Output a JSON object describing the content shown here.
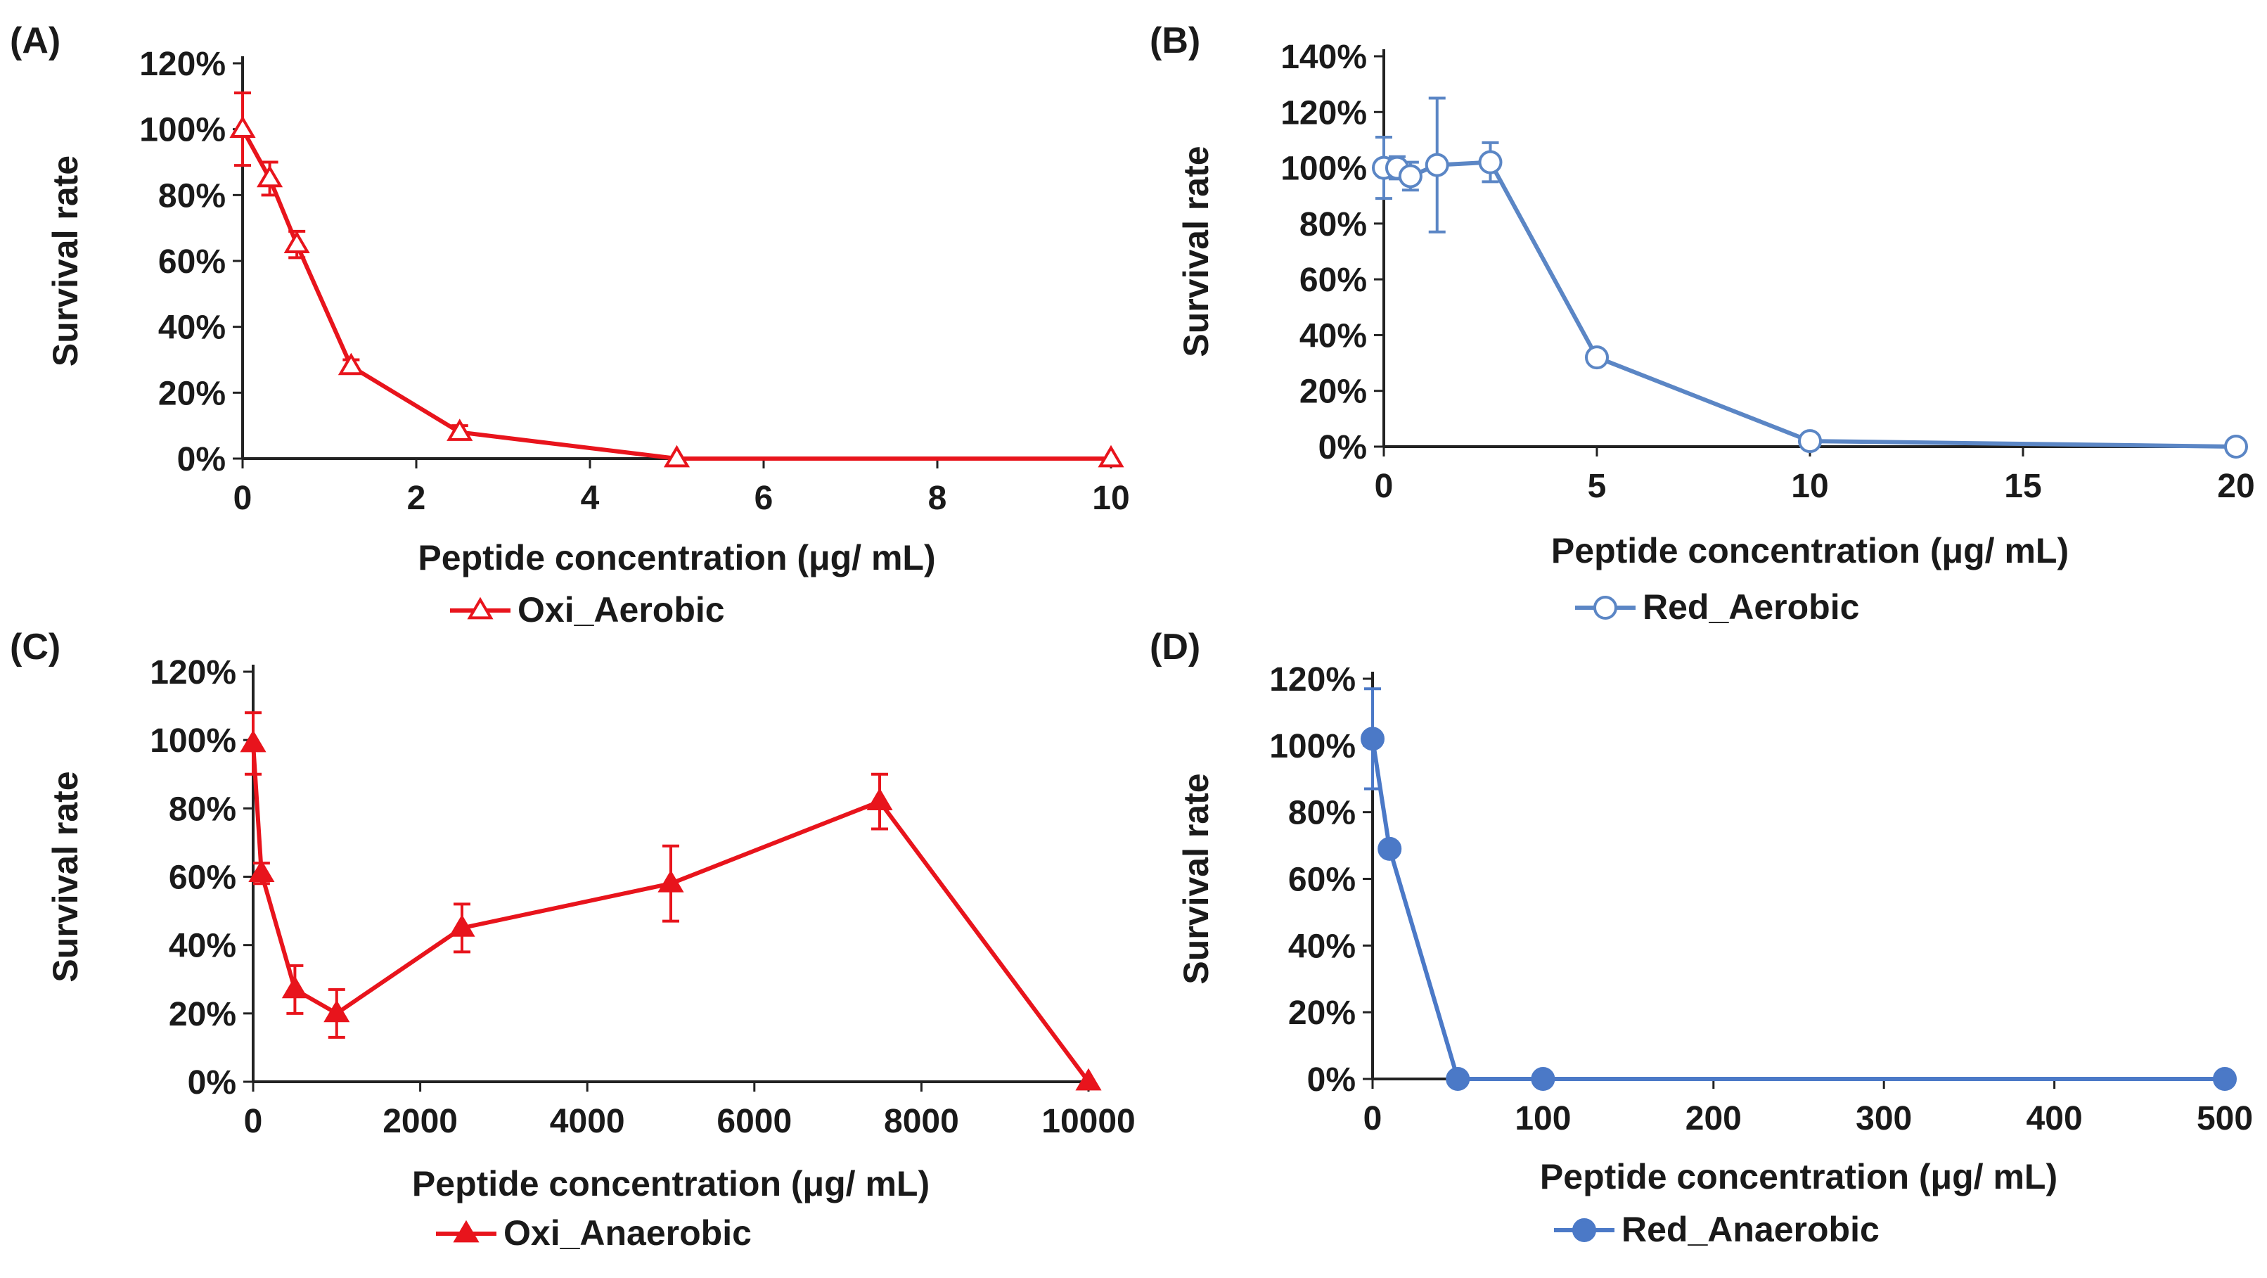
{
  "chart_data": [
    {
      "panel": "(A)",
      "type": "line",
      "marker": "open-triangle",
      "color": "#e8141c",
      "xlabel": "Peptide concentration (μg/ mL)",
      "ylabel": "Survival rate",
      "xlim": [
        0,
        10
      ],
      "ylim": [
        0,
        1.2
      ],
      "xticks": [
        0,
        2,
        4,
        6,
        8,
        10
      ],
      "xtick_labels": [
        "0",
        "2",
        "4",
        "6",
        "8",
        "10"
      ],
      "yticks": [
        0,
        0.2,
        0.4,
        0.6,
        0.8,
        1.0,
        1.2
      ],
      "ytick_labels": [
        "0%",
        "20%",
        "40%",
        "60%",
        "80%",
        "100%",
        "120%"
      ],
      "legend": "Oxi_Aerobic",
      "series": [
        {
          "name": "Oxi_Aerobic",
          "x": [
            0,
            0.3125,
            0.625,
            1.25,
            2.5,
            5,
            10
          ],
          "y": [
            1.0,
            0.85,
            0.65,
            0.28,
            0.08,
            0.0,
            0.0
          ],
          "err": [
            0.11,
            0.05,
            0.04,
            0.02,
            0.02,
            0.0,
            0.0
          ]
        }
      ]
    },
    {
      "panel": "(B)",
      "type": "line",
      "marker": "open-circle",
      "color": "#5b86c5",
      "xlabel": "Peptide concentration (μg/ mL)",
      "ylabel": "Survival rate",
      "xlim": [
        0,
        20
      ],
      "ylim": [
        0,
        1.4
      ],
      "xticks": [
        0,
        5,
        10,
        15,
        20
      ],
      "xtick_labels": [
        "0",
        "5",
        "10",
        "15",
        "20"
      ],
      "yticks": [
        0,
        0.2,
        0.4,
        0.6,
        0.8,
        1.0,
        1.2,
        1.4
      ],
      "ytick_labels": [
        "0%",
        "20%",
        "40%",
        "60%",
        "80%",
        "100%",
        "120%",
        "140%"
      ],
      "legend": "Red_Aerobic",
      "series": [
        {
          "name": "Red_Aerobic",
          "x": [
            0,
            0.3125,
            0.625,
            1.25,
            2.5,
            5,
            10,
            20
          ],
          "y": [
            1.0,
            1.0,
            0.97,
            1.01,
            1.02,
            0.32,
            0.02,
            0.0
          ],
          "err": [
            0.11,
            0.04,
            0.05,
            0.24,
            0.07,
            0.02,
            0.01,
            0.0
          ]
        }
      ]
    },
    {
      "panel": "(C)",
      "type": "line",
      "marker": "filled-triangle",
      "color": "#e8141c",
      "xlabel": "Peptide concentration (μg/ mL)",
      "ylabel": "Survival rate",
      "xlim": [
        0,
        10000
      ],
      "ylim": [
        0,
        1.2
      ],
      "xticks": [
        0,
        2000,
        4000,
        6000,
        8000,
        10000
      ],
      "xtick_labels": [
        "0",
        "2000",
        "4000",
        "6000",
        "8000",
        "10000"
      ],
      "yticks": [
        0,
        0.2,
        0.4,
        0.6,
        0.8,
        1.0,
        1.2
      ],
      "ytick_labels": [
        "0%",
        "20%",
        "40%",
        "60%",
        "80%",
        "100%",
        "120%"
      ],
      "legend": "Oxi_Anaerobic",
      "series": [
        {
          "name": "Oxi_Anaerobic",
          "x": [
            0,
            100,
            500,
            1000,
            2500,
            5000,
            7500,
            10000
          ],
          "y": [
            0.99,
            0.61,
            0.27,
            0.2,
            0.45,
            0.58,
            0.82,
            0.0
          ],
          "err": [
            0.09,
            0.03,
            0.07,
            0.07,
            0.07,
            0.11,
            0.08,
            0.0
          ]
        }
      ]
    },
    {
      "panel": "(D)",
      "type": "line",
      "marker": "filled-circle",
      "color": "#4b79c7",
      "xlabel": "Peptide concentration (μg/ mL)",
      "ylabel": "Survival rate",
      "xlim": [
        0,
        500
      ],
      "ylim": [
        0,
        1.2
      ],
      "xticks": [
        0,
        100,
        200,
        300,
        400,
        500
      ],
      "xtick_labels": [
        "0",
        "100",
        "200",
        "300",
        "400",
        "500"
      ],
      "yticks": [
        0,
        0.2,
        0.4,
        0.6,
        0.8,
        1.0,
        1.2
      ],
      "ytick_labels": [
        "0%",
        "20%",
        "40%",
        "60%",
        "80%",
        "100%",
        "120%"
      ],
      "legend": "Red_Anaerobic",
      "series": [
        {
          "name": "Red_Anaerobic",
          "x": [
            0,
            10,
            50,
            100,
            500
          ],
          "y": [
            1.02,
            0.69,
            0.0,
            0.0,
            0.0
          ],
          "err": [
            0.15,
            0.0,
            0.0,
            0.0,
            0.0
          ]
        }
      ]
    }
  ]
}
